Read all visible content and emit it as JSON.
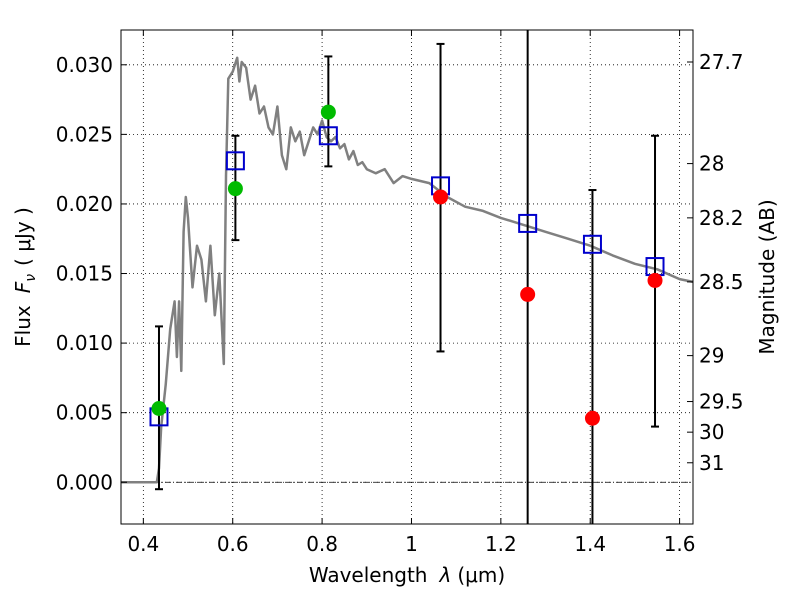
{
  "chart_data": {
    "type": "scatter",
    "xlabel_parts": {
      "pre": "Wavelength",
      "math": "λ",
      "unit": "(μm)"
    },
    "ylabel_parts": {
      "pre": "Flux",
      "math": "F",
      "sub": "ν",
      "unit": "( μJy )"
    },
    "right_ylabel": "Magnitude (AB)",
    "xlim": [
      0.35,
      1.63
    ],
    "ylim": [
      -0.003,
      0.0325
    ],
    "grid": true,
    "x_ticks": [
      0.4,
      0.6,
      0.8,
      1.0,
      1.2,
      1.4,
      1.6
    ],
    "x_tick_labels": [
      "0.4",
      "0.6",
      "0.8",
      "1",
      "1.2",
      "1.4",
      "1.6"
    ],
    "y_ticks": [
      0.0,
      0.005,
      0.01,
      0.015,
      0.02,
      0.025,
      0.03
    ],
    "y_tick_labels": [
      "0.000",
      "0.005",
      "0.010",
      "0.015",
      "0.020",
      "0.025",
      "0.030"
    ],
    "right_ticks": [
      {
        "label": "27.7",
        "flux": 0.0302
      },
      {
        "label": "28",
        "flux": 0.0229
      },
      {
        "label": "28.2",
        "flux": 0.019
      },
      {
        "label": "28.5",
        "flux": 0.0144
      },
      {
        "label": "29",
        "flux": 0.0091
      },
      {
        "label": "29.5",
        "flux": 0.0058
      },
      {
        "label": "30",
        "flux": 0.0036
      },
      {
        "label": "31",
        "flux": 0.0014
      }
    ],
    "colors": {
      "model": "#808080",
      "detection": "#00bb00",
      "nondetection": "#ff0000",
      "model_flux": "#0000cc",
      "errorbar": "#000000"
    },
    "model_spectrum": {
      "x": [
        0.35,
        0.43,
        0.435,
        0.44,
        0.45,
        0.46,
        0.47,
        0.475,
        0.48,
        0.485,
        0.49,
        0.495,
        0.5,
        0.51,
        0.52,
        0.53,
        0.54,
        0.55,
        0.56,
        0.57,
        0.58,
        0.585,
        0.59,
        0.6,
        0.61,
        0.615,
        0.62,
        0.63,
        0.64,
        0.65,
        0.66,
        0.67,
        0.68,
        0.69,
        0.7,
        0.71,
        0.72,
        0.73,
        0.74,
        0.75,
        0.76,
        0.77,
        0.78,
        0.79,
        0.8,
        0.81,
        0.82,
        0.83,
        0.84,
        0.85,
        0.86,
        0.87,
        0.88,
        0.89,
        0.9,
        0.92,
        0.94,
        0.96,
        0.98,
        1.0,
        1.04,
        1.08,
        1.12,
        1.16,
        1.2,
        1.25,
        1.3,
        1.35,
        1.4,
        1.45,
        1.5,
        1.55,
        1.6,
        1.63
      ],
      "y": [
        0.0,
        0.0,
        0.001,
        0.004,
        0.007,
        0.011,
        0.013,
        0.009,
        0.013,
        0.008,
        0.018,
        0.0205,
        0.019,
        0.014,
        0.017,
        0.016,
        0.013,
        0.017,
        0.012,
        0.015,
        0.0085,
        0.022,
        0.029,
        0.0295,
        0.0305,
        0.0288,
        0.0302,
        0.0298,
        0.0275,
        0.0285,
        0.0265,
        0.027,
        0.0255,
        0.025,
        0.027,
        0.0235,
        0.0225,
        0.0255,
        0.0245,
        0.0252,
        0.0235,
        0.0245,
        0.0255,
        0.025,
        0.026,
        0.0248,
        0.0245,
        0.0248,
        0.024,
        0.0243,
        0.0232,
        0.0238,
        0.0228,
        0.023,
        0.0225,
        0.0222,
        0.0225,
        0.0215,
        0.022,
        0.0218,
        0.0215,
        0.0205,
        0.0198,
        0.0195,
        0.019,
        0.0185,
        0.018,
        0.0175,
        0.017,
        0.0163,
        0.0157,
        0.0153,
        0.0146,
        0.0144
      ]
    },
    "detections": [
      {
        "x": 0.435,
        "y": 0.0053
      },
      {
        "x": 0.606,
        "y": 0.0211
      },
      {
        "x": 0.814,
        "y": 0.0266
      }
    ],
    "nondetections": [
      {
        "x": 1.065,
        "y": 0.0205
      },
      {
        "x": 1.26,
        "y": 0.0135
      },
      {
        "x": 1.405,
        "y": 0.0046
      },
      {
        "x": 1.545,
        "y": 0.0145
      }
    ],
    "model_fluxes": [
      {
        "x": 0.435,
        "y": 0.0047
      },
      {
        "x": 0.606,
        "y": 0.0231
      },
      {
        "x": 0.814,
        "y": 0.0249
      },
      {
        "x": 1.065,
        "y": 0.0213
      },
      {
        "x": 1.26,
        "y": 0.0186
      },
      {
        "x": 1.405,
        "y": 0.0171
      },
      {
        "x": 1.545,
        "y": 0.0155
      }
    ],
    "errorbars": [
      {
        "x": 0.435,
        "low": -0.0005,
        "high": 0.0112
      },
      {
        "x": 0.606,
        "low": 0.0174,
        "high": 0.0249
      },
      {
        "x": 0.814,
        "low": 0.0227,
        "high": 0.0306
      },
      {
        "x": 1.065,
        "low": 0.0094,
        "high": 0.0315
      },
      {
        "x": 1.26,
        "low": -0.003,
        "high": 0.0325
      },
      {
        "x": 1.405,
        "low": -0.003,
        "high": 0.021
      },
      {
        "x": 1.545,
        "low": 0.004,
        "high": 0.0249
      }
    ]
  }
}
